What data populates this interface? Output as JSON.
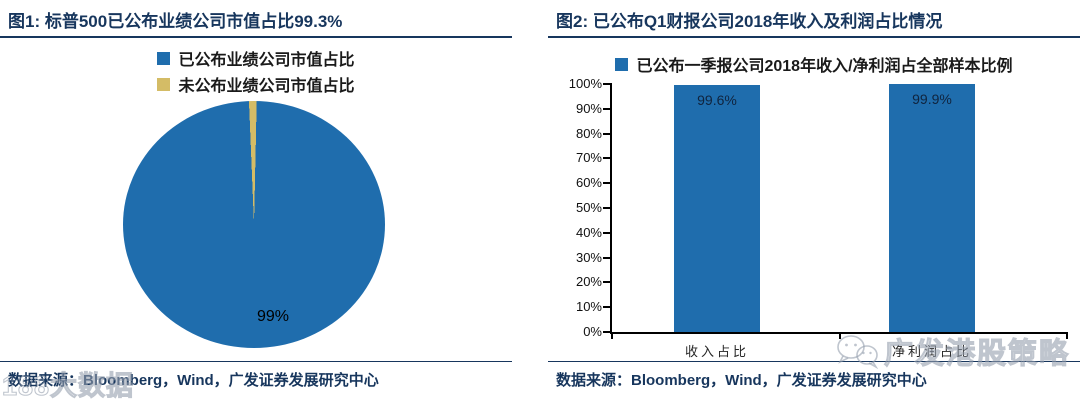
{
  "colors": {
    "navy": "#17365D",
    "blue": "#1F6DAD",
    "gold": "#D4BC66",
    "axis": "#000000",
    "watermark_gray": "#9AA3B1"
  },
  "left_panel": {
    "title": "图1:  标普500已公布业绩公司市值占比99.3%",
    "legend": [
      {
        "label": "已公布业绩公司市值占比",
        "color": "#1F6DAD"
      },
      {
        "label": "未公布业绩公司市值占比",
        "color": "#D4BC66"
      }
    ],
    "source": "数据来源：Bloomberg，Wind，广发证券发展研究中心"
  },
  "right_panel": {
    "title": "图2:  已公布Q1财报公司2018年收入及利润占比情况",
    "legend": [
      {
        "label": "已公布一季报公司2018年收入/净利润占全部样本比例",
        "color": "#1F6DAD"
      }
    ],
    "source": "数据来源：Bloomberg，Wind，广发证券发展研究中心"
  },
  "watermarks": {
    "bottom_left": "188大数据",
    "bottom_right": "广发港股策略",
    "bottom_right_icon": "wechat-icon"
  },
  "chart_data": [
    {
      "type": "pie",
      "title": "标普500已公布业绩公司市值占比99.3%",
      "slices": [
        {
          "name": "已公布业绩公司市值占比",
          "value": 99,
          "color": "#1F6DAD",
          "label": "99%"
        },
        {
          "name": "未公布业绩公司市值占比",
          "value": 1,
          "color": "#D4BC66",
          "label": ""
        }
      ],
      "start_angle_deg": 0,
      "direction": "clockwise",
      "legend_position": "top",
      "data_label_position": "inside-bottom"
    },
    {
      "type": "bar",
      "title": "已公布Q1财报公司2018年收入及利润占比情况",
      "categories": [
        "收入占比",
        "净利润占比"
      ],
      "values": [
        99.6,
        99.9
      ],
      "data_labels": [
        "99.6%",
        "99.9%"
      ],
      "bar_color": "#1F6DAD",
      "xlabel": "",
      "ylabel": "",
      "ylim": [
        0,
        100
      ],
      "ytick_labels": [
        "0%",
        "10%",
        "20%",
        "30%",
        "40%",
        "50%",
        "60%",
        "70%",
        "80%",
        "90%",
        "100%"
      ],
      "grid": false,
      "legend": [
        "已公布一季报公司2018年收入/净利润占全部样本比例"
      ],
      "legend_position": "top",
      "data_label_position": "inside-top"
    }
  ]
}
